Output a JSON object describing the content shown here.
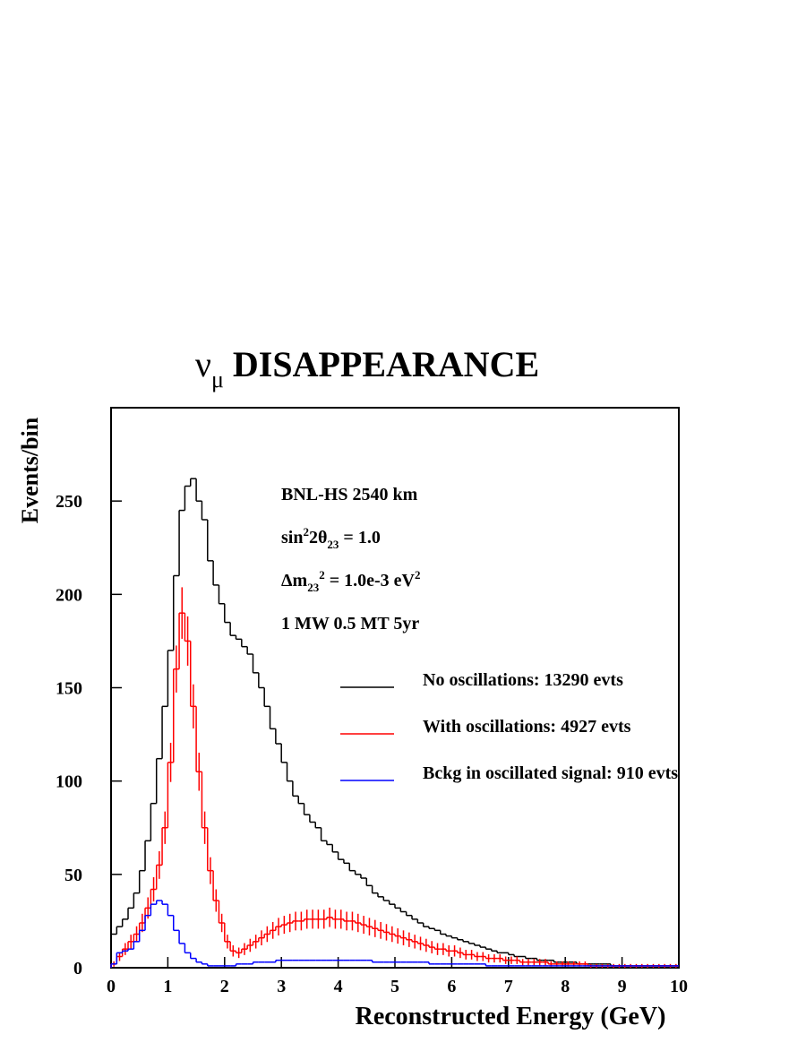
{
  "chart_data": {
    "type": "histogram",
    "title": [
      {
        "text": "ν"
      },
      {
        "text": "μ",
        "shift": "sub"
      },
      {
        "text": " DISAPPEARANCE"
      }
    ],
    "x_label": "Reconstructed Energy (GeV)",
    "y_label": "Events/bin",
    "annotations": [
      [
        {
          "text": "BNL-HS  2540 km"
        }
      ],
      [
        {
          "text": "sin"
        },
        {
          "text": "2",
          "shift": "sup"
        },
        {
          "text": "2θ"
        },
        {
          "text": "23",
          "shift": "sub"
        },
        {
          "text": " = 1.0"
        }
      ],
      [
        {
          "text": "Δm"
        },
        {
          "text": "23",
          "shift": "sub"
        },
        {
          "text": "2",
          "shift": "sup"
        },
        {
          "text": " = 1.0e-3 eV"
        },
        {
          "text": "2",
          "shift": "sup"
        }
      ],
      [
        {
          "text": "1 MW 0.5 MT 5yr"
        }
      ]
    ],
    "xlim": [
      0,
      10
    ],
    "xticks": [
      0,
      1,
      2,
      3,
      4,
      5,
      6,
      7,
      8,
      9,
      10
    ],
    "ylim": [
      0,
      300
    ],
    "yticks": [
      0,
      50,
      100,
      150,
      200,
      250
    ],
    "bins": [
      0,
      0.1,
      0.2,
      0.3,
      0.4,
      0.5,
      0.6,
      0.7,
      0.8,
      0.9,
      1,
      1.1,
      1.2,
      1.3,
      1.4,
      1.5,
      1.6,
      1.7,
      1.8,
      1.9,
      2,
      2.1,
      2.2,
      2.3,
      2.4,
      2.5,
      2.6,
      2.7,
      2.8,
      2.9,
      3,
      3.1,
      3.2,
      3.3,
      3.4,
      3.5,
      3.6,
      3.7,
      3.8,
      3.9,
      4,
      4.1,
      4.2,
      4.3,
      4.4,
      4.5,
      4.6,
      4.7,
      4.8,
      4.9,
      5,
      5.1,
      5.2,
      5.3,
      5.4,
      5.5,
      5.6,
      5.7,
      5.8,
      5.9,
      6,
      6.1,
      6.2,
      6.3,
      6.4,
      6.5,
      6.6,
      6.7,
      6.8,
      6.9,
      7,
      7.1,
      7.2,
      7.3,
      7.4,
      7.5,
      7.6,
      7.7,
      7.8,
      7.9,
      8,
      8.1,
      8.2,
      8.3,
      8.4,
      8.5,
      8.6,
      8.7,
      8.8,
      8.9,
      9,
      9.1,
      9.2,
      9.3,
      9.4,
      9.5,
      9.6,
      9.7,
      9.8,
      9.9,
      10
    ],
    "series": [
      {
        "name": "No oscillations: 13290 evts",
        "color": "#000000",
        "values": [
          18,
          22,
          26,
          32,
          40,
          52,
          68,
          88,
          112,
          140,
          170,
          210,
          245,
          258,
          262,
          250,
          240,
          218,
          205,
          195,
          185,
          178,
          176,
          172,
          168,
          158,
          150,
          140,
          128,
          120,
          110,
          100,
          92,
          88,
          82,
          78,
          75,
          68,
          66,
          62,
          58,
          56,
          52,
          50,
          48,
          44,
          40,
          38,
          36,
          34,
          32,
          30,
          28,
          26,
          24,
          22,
          21,
          20,
          18,
          17,
          16,
          15,
          14,
          13,
          12,
          11,
          10,
          9,
          8,
          8,
          7,
          6,
          6,
          5,
          5,
          4,
          4,
          4,
          3,
          3,
          3,
          3,
          2,
          2,
          2,
          2,
          2,
          2,
          1,
          1,
          1,
          1,
          1,
          1,
          1,
          1,
          1,
          1,
          1,
          1
        ]
      },
      {
        "name": "With oscillations: 4927 evts",
        "color": "#ff0000",
        "values": [
          2,
          6,
          10,
          14,
          18,
          24,
          32,
          42,
          55,
          75,
          110,
          160,
          190,
          175,
          140,
          105,
          75,
          52,
          36,
          24,
          14,
          9,
          8,
          10,
          12,
          14,
          16,
          18,
          20,
          22,
          23,
          24,
          25,
          25,
          26,
          26,
          26,
          26,
          27,
          26,
          26,
          25,
          25,
          24,
          23,
          22,
          21,
          20,
          19,
          18,
          17,
          16,
          15,
          14,
          13,
          12,
          11,
          10,
          10,
          9,
          9,
          8,
          7,
          7,
          6,
          6,
          5,
          5,
          5,
          4,
          4,
          4,
          3,
          3,
          3,
          3,
          3,
          2,
          2,
          2,
          2,
          2,
          2,
          2,
          1,
          1,
          1,
          1,
          1,
          1,
          1,
          1,
          1,
          1,
          1,
          1,
          1,
          1,
          1,
          1
        ],
        "errors": [
          1.4,
          2.4,
          3.2,
          3.7,
          4.2,
          4.9,
          5.7,
          6.5,
          7.4,
          8.7,
          10.5,
          12.6,
          13.8,
          13.2,
          11.8,
          10.2,
          8.7,
          7.2,
          6,
          4.9,
          3.7,
          3,
          2.8,
          3.2,
          3.5,
          3.7,
          4,
          4.2,
          4.5,
          4.7,
          4.8,
          4.9,
          5,
          5,
          5.1,
          5.1,
          5.1,
          5.1,
          5.2,
          5.1,
          5.1,
          5,
          5,
          4.9,
          4.8,
          4.7,
          4.6,
          4.5,
          4.4,
          4.2,
          4.1,
          4,
          3.9,
          3.7,
          3.6,
          3.5,
          3.3,
          3.2,
          3.2,
          3,
          3,
          2.8,
          2.6,
          2.6,
          2.4,
          2.4,
          2.2,
          2.2,
          2.2,
          2,
          2,
          2,
          1.7,
          1.7,
          1.7,
          1.7,
          1.7,
          1.4,
          1.4,
          1.4,
          1.4,
          1.4,
          1.4,
          1.4,
          1,
          1,
          1,
          1,
          1,
          1,
          1,
          1,
          1,
          1,
          1,
          1,
          1,
          1,
          1,
          1
        ]
      },
      {
        "name": "Bckg in oscillated signal: 910 evts",
        "color": "#0000ff",
        "values": [
          2,
          8,
          9,
          10,
          14,
          20,
          28,
          34,
          36,
          34,
          28,
          20,
          13,
          8,
          5,
          3,
          2,
          1,
          1,
          1,
          1,
          1,
          2,
          2,
          2,
          3,
          3,
          3,
          3,
          4,
          4,
          4,
          4,
          4,
          4,
          4,
          4,
          4,
          4,
          4,
          4,
          4,
          4,
          4,
          4,
          4,
          3,
          3,
          3,
          3,
          3,
          3,
          3,
          3,
          3,
          3,
          2,
          2,
          2,
          2,
          2,
          2,
          2,
          2,
          2,
          2,
          1,
          1,
          1,
          1,
          1,
          1,
          1,
          1,
          1,
          1,
          1,
          1,
          1,
          1,
          1,
          1,
          1,
          1,
          1,
          1,
          1,
          1,
          1,
          1,
          1,
          1,
          1,
          1,
          1,
          1,
          1,
          1,
          1,
          1
        ]
      }
    ]
  }
}
